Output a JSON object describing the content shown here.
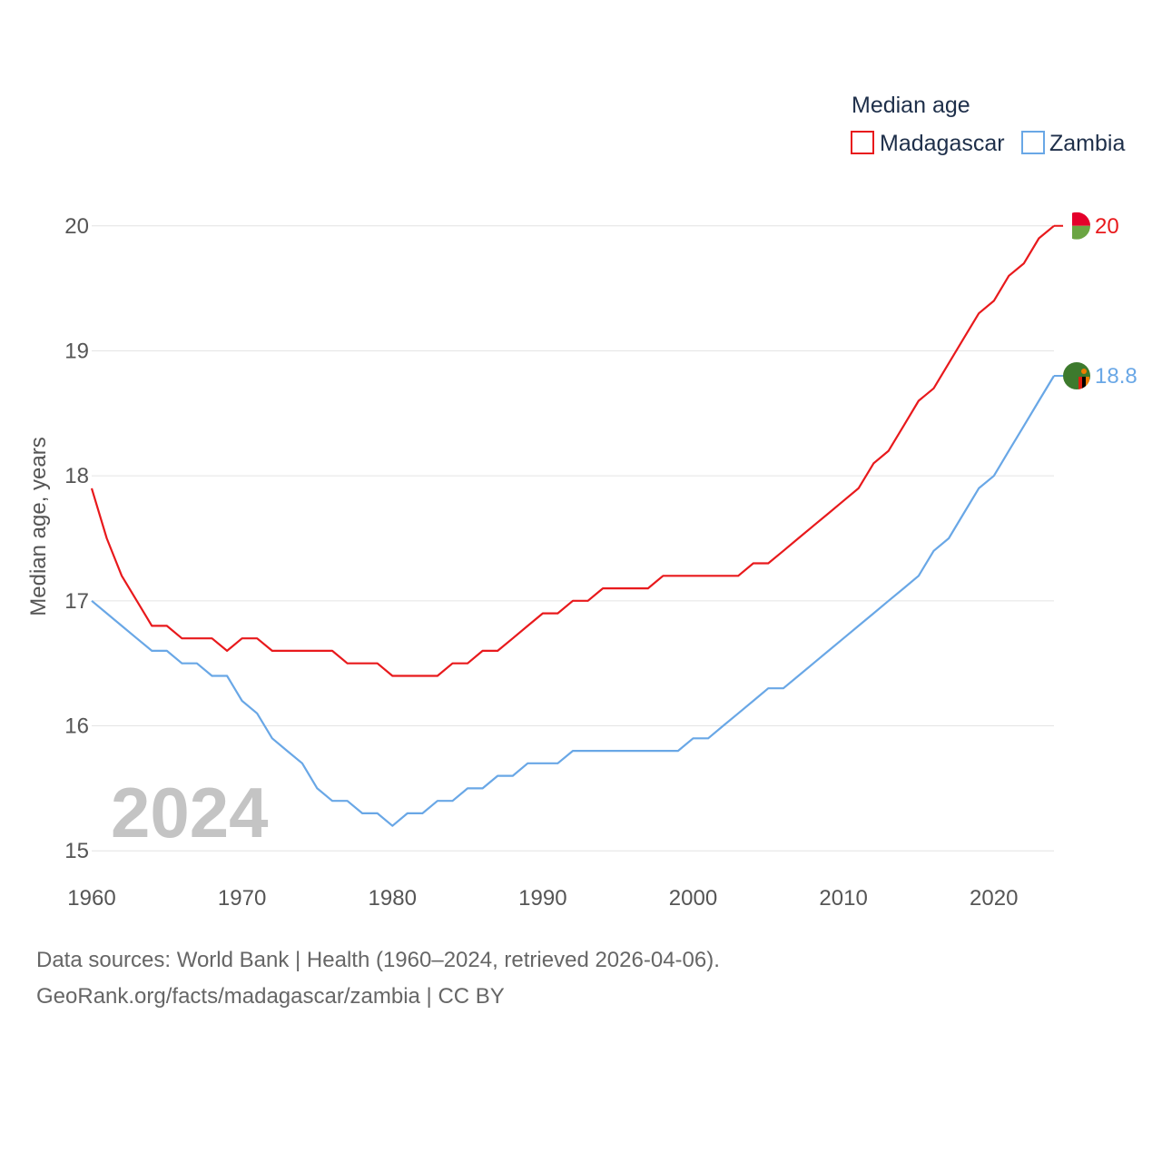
{
  "chart_data": {
    "type": "line",
    "title": "Median age",
    "ylabel": "Median age, years",
    "xlabel": "",
    "xlim": [
      1960,
      2024
    ],
    "ylim": [
      14.9,
      20.1
    ],
    "x_ticks": [
      1960,
      1970,
      1980,
      1990,
      2000,
      2010,
      2020
    ],
    "y_ticks": [
      15,
      16,
      17,
      18,
      19,
      20
    ],
    "grid": true,
    "legend_position": "top-right",
    "current_year": "2024",
    "x": [
      1960,
      1961,
      1962,
      1963,
      1964,
      1965,
      1966,
      1967,
      1968,
      1969,
      1970,
      1971,
      1972,
      1973,
      1974,
      1975,
      1976,
      1977,
      1978,
      1979,
      1980,
      1981,
      1982,
      1983,
      1984,
      1985,
      1986,
      1987,
      1988,
      1989,
      1990,
      1991,
      1992,
      1993,
      1994,
      1995,
      1996,
      1997,
      1998,
      1999,
      2000,
      2001,
      2002,
      2003,
      2004,
      2005,
      2006,
      2007,
      2008,
      2009,
      2010,
      2011,
      2012,
      2013,
      2014,
      2015,
      2016,
      2017,
      2018,
      2019,
      2020,
      2021,
      2022,
      2023,
      2024
    ],
    "series": [
      {
        "name": "Madagascar",
        "color": "#e8191c",
        "end_label": "20",
        "values": [
          17.9,
          17.5,
          17.2,
          17.0,
          16.8,
          16.8,
          16.7,
          16.7,
          16.7,
          16.6,
          16.7,
          16.7,
          16.6,
          16.6,
          16.6,
          16.6,
          16.6,
          16.5,
          16.5,
          16.5,
          16.4,
          16.4,
          16.4,
          16.4,
          16.5,
          16.5,
          16.6,
          16.6,
          16.7,
          16.8,
          16.9,
          16.9,
          17.0,
          17.0,
          17.1,
          17.1,
          17.1,
          17.1,
          17.2,
          17.2,
          17.2,
          17.2,
          17.2,
          17.2,
          17.3,
          17.3,
          17.4,
          17.5,
          17.6,
          17.7,
          17.8,
          17.9,
          18.1,
          18.2,
          18.4,
          18.6,
          18.7,
          18.9,
          19.1,
          19.3,
          19.4,
          19.6,
          19.7,
          19.9,
          20.0
        ]
      },
      {
        "name": "Zambia",
        "color": "#69a7e6",
        "end_label": "18.8",
        "values": [
          17.0,
          16.9,
          16.8,
          16.7,
          16.6,
          16.6,
          16.5,
          16.5,
          16.4,
          16.4,
          16.2,
          16.1,
          15.9,
          15.8,
          15.7,
          15.5,
          15.4,
          15.4,
          15.3,
          15.3,
          15.2,
          15.3,
          15.3,
          15.4,
          15.4,
          15.5,
          15.5,
          15.6,
          15.6,
          15.7,
          15.7,
          15.7,
          15.8,
          15.8,
          15.8,
          15.8,
          15.8,
          15.8,
          15.8,
          15.8,
          15.9,
          15.9,
          16.0,
          16.1,
          16.2,
          16.3,
          16.3,
          16.4,
          16.5,
          16.6,
          16.7,
          16.8,
          16.9,
          17.0,
          17.1,
          17.2,
          17.4,
          17.5,
          17.7,
          17.9,
          18.0,
          18.2,
          18.4,
          18.6,
          18.8
        ]
      }
    ]
  },
  "flags": [
    {
      "country": "Madagascar",
      "icon": "madagascar-flag-icon",
      "colors": [
        "#ffffff",
        "#e4002b",
        "#6ba543"
      ]
    },
    {
      "country": "Zambia",
      "icon": "zambia-flag-icon",
      "colors": [
        "#3d7a2d",
        "#de2010",
        "#000000",
        "#ef7d00"
      ]
    }
  ],
  "footer": {
    "source": "Data sources: World Bank | Health (1960–2024, retrieved 2026-04-06).",
    "credit": "GeoRank.org/facts/madagascar/zambia | CC BY"
  }
}
